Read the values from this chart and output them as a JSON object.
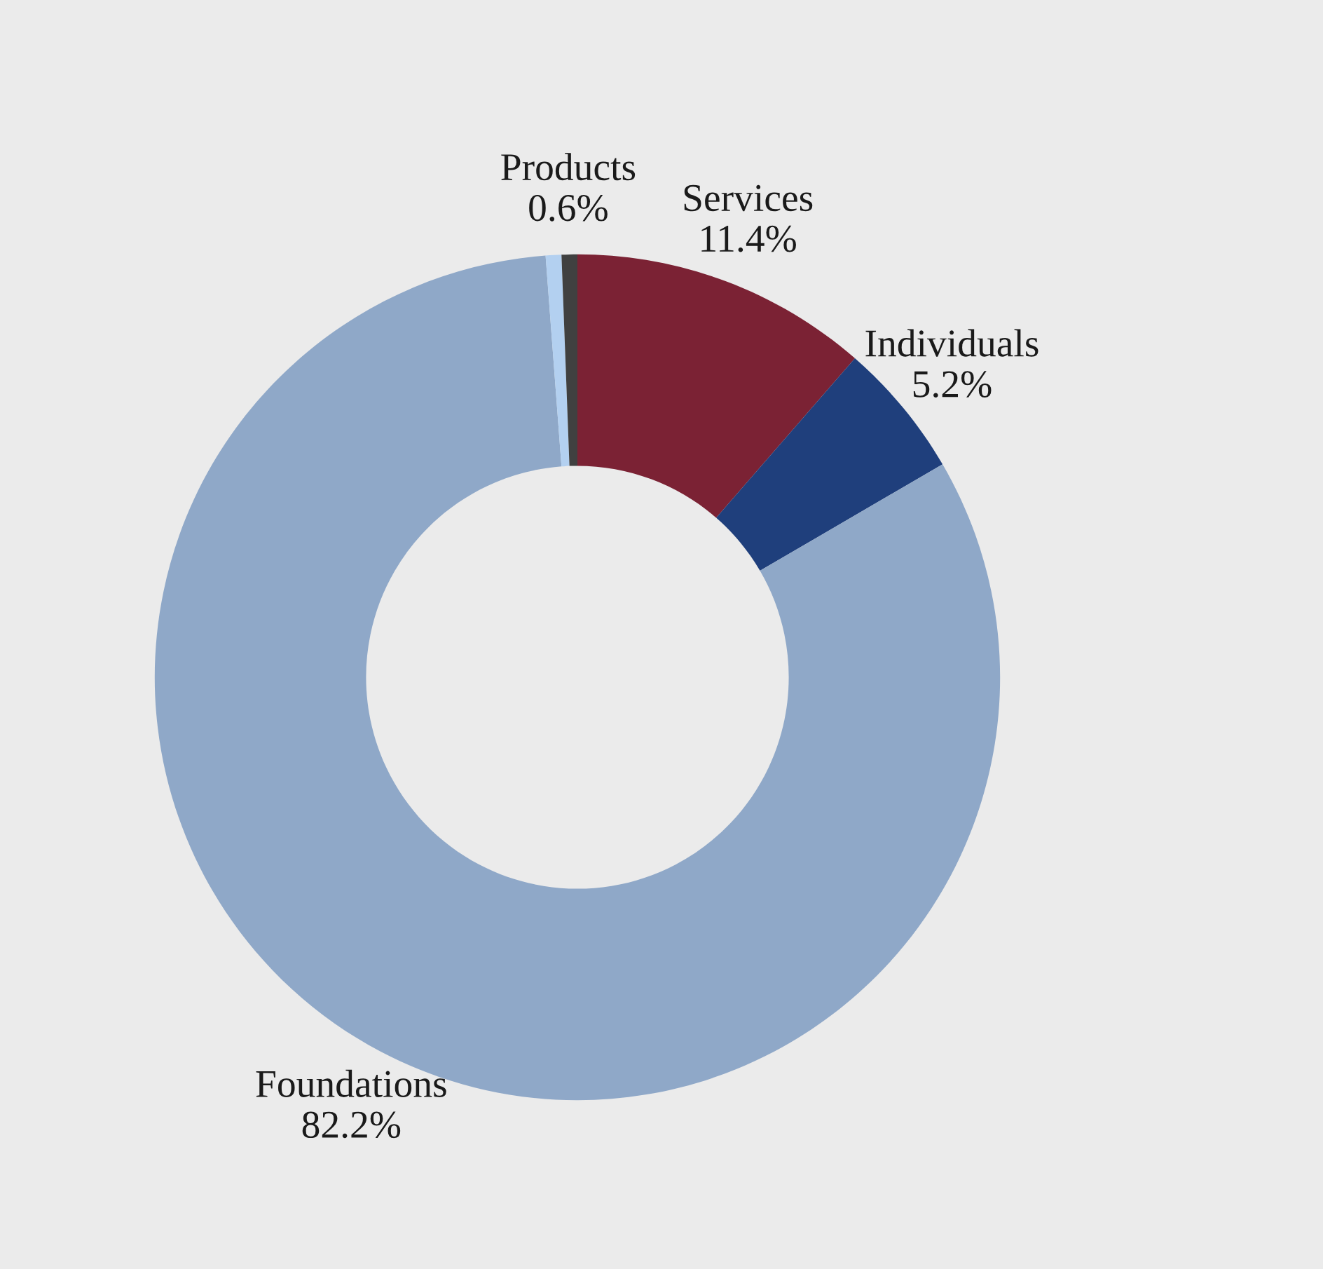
{
  "chart_data": {
    "type": "donut",
    "categories": [
      "Services",
      "Individuals",
      "Foundations",
      null,
      "Products"
    ],
    "values": [
      11.4,
      5.2,
      82.2,
      0.6,
      0.6
    ],
    "colors": [
      "#7b2234",
      "#1f3f7c",
      "#8fa8c8",
      "#b3d0f0",
      "#404040"
    ],
    "value_labels": [
      "11.4%",
      "5.2%",
      "82.2%",
      null,
      "0.6%"
    ],
    "legend": false
  }
}
